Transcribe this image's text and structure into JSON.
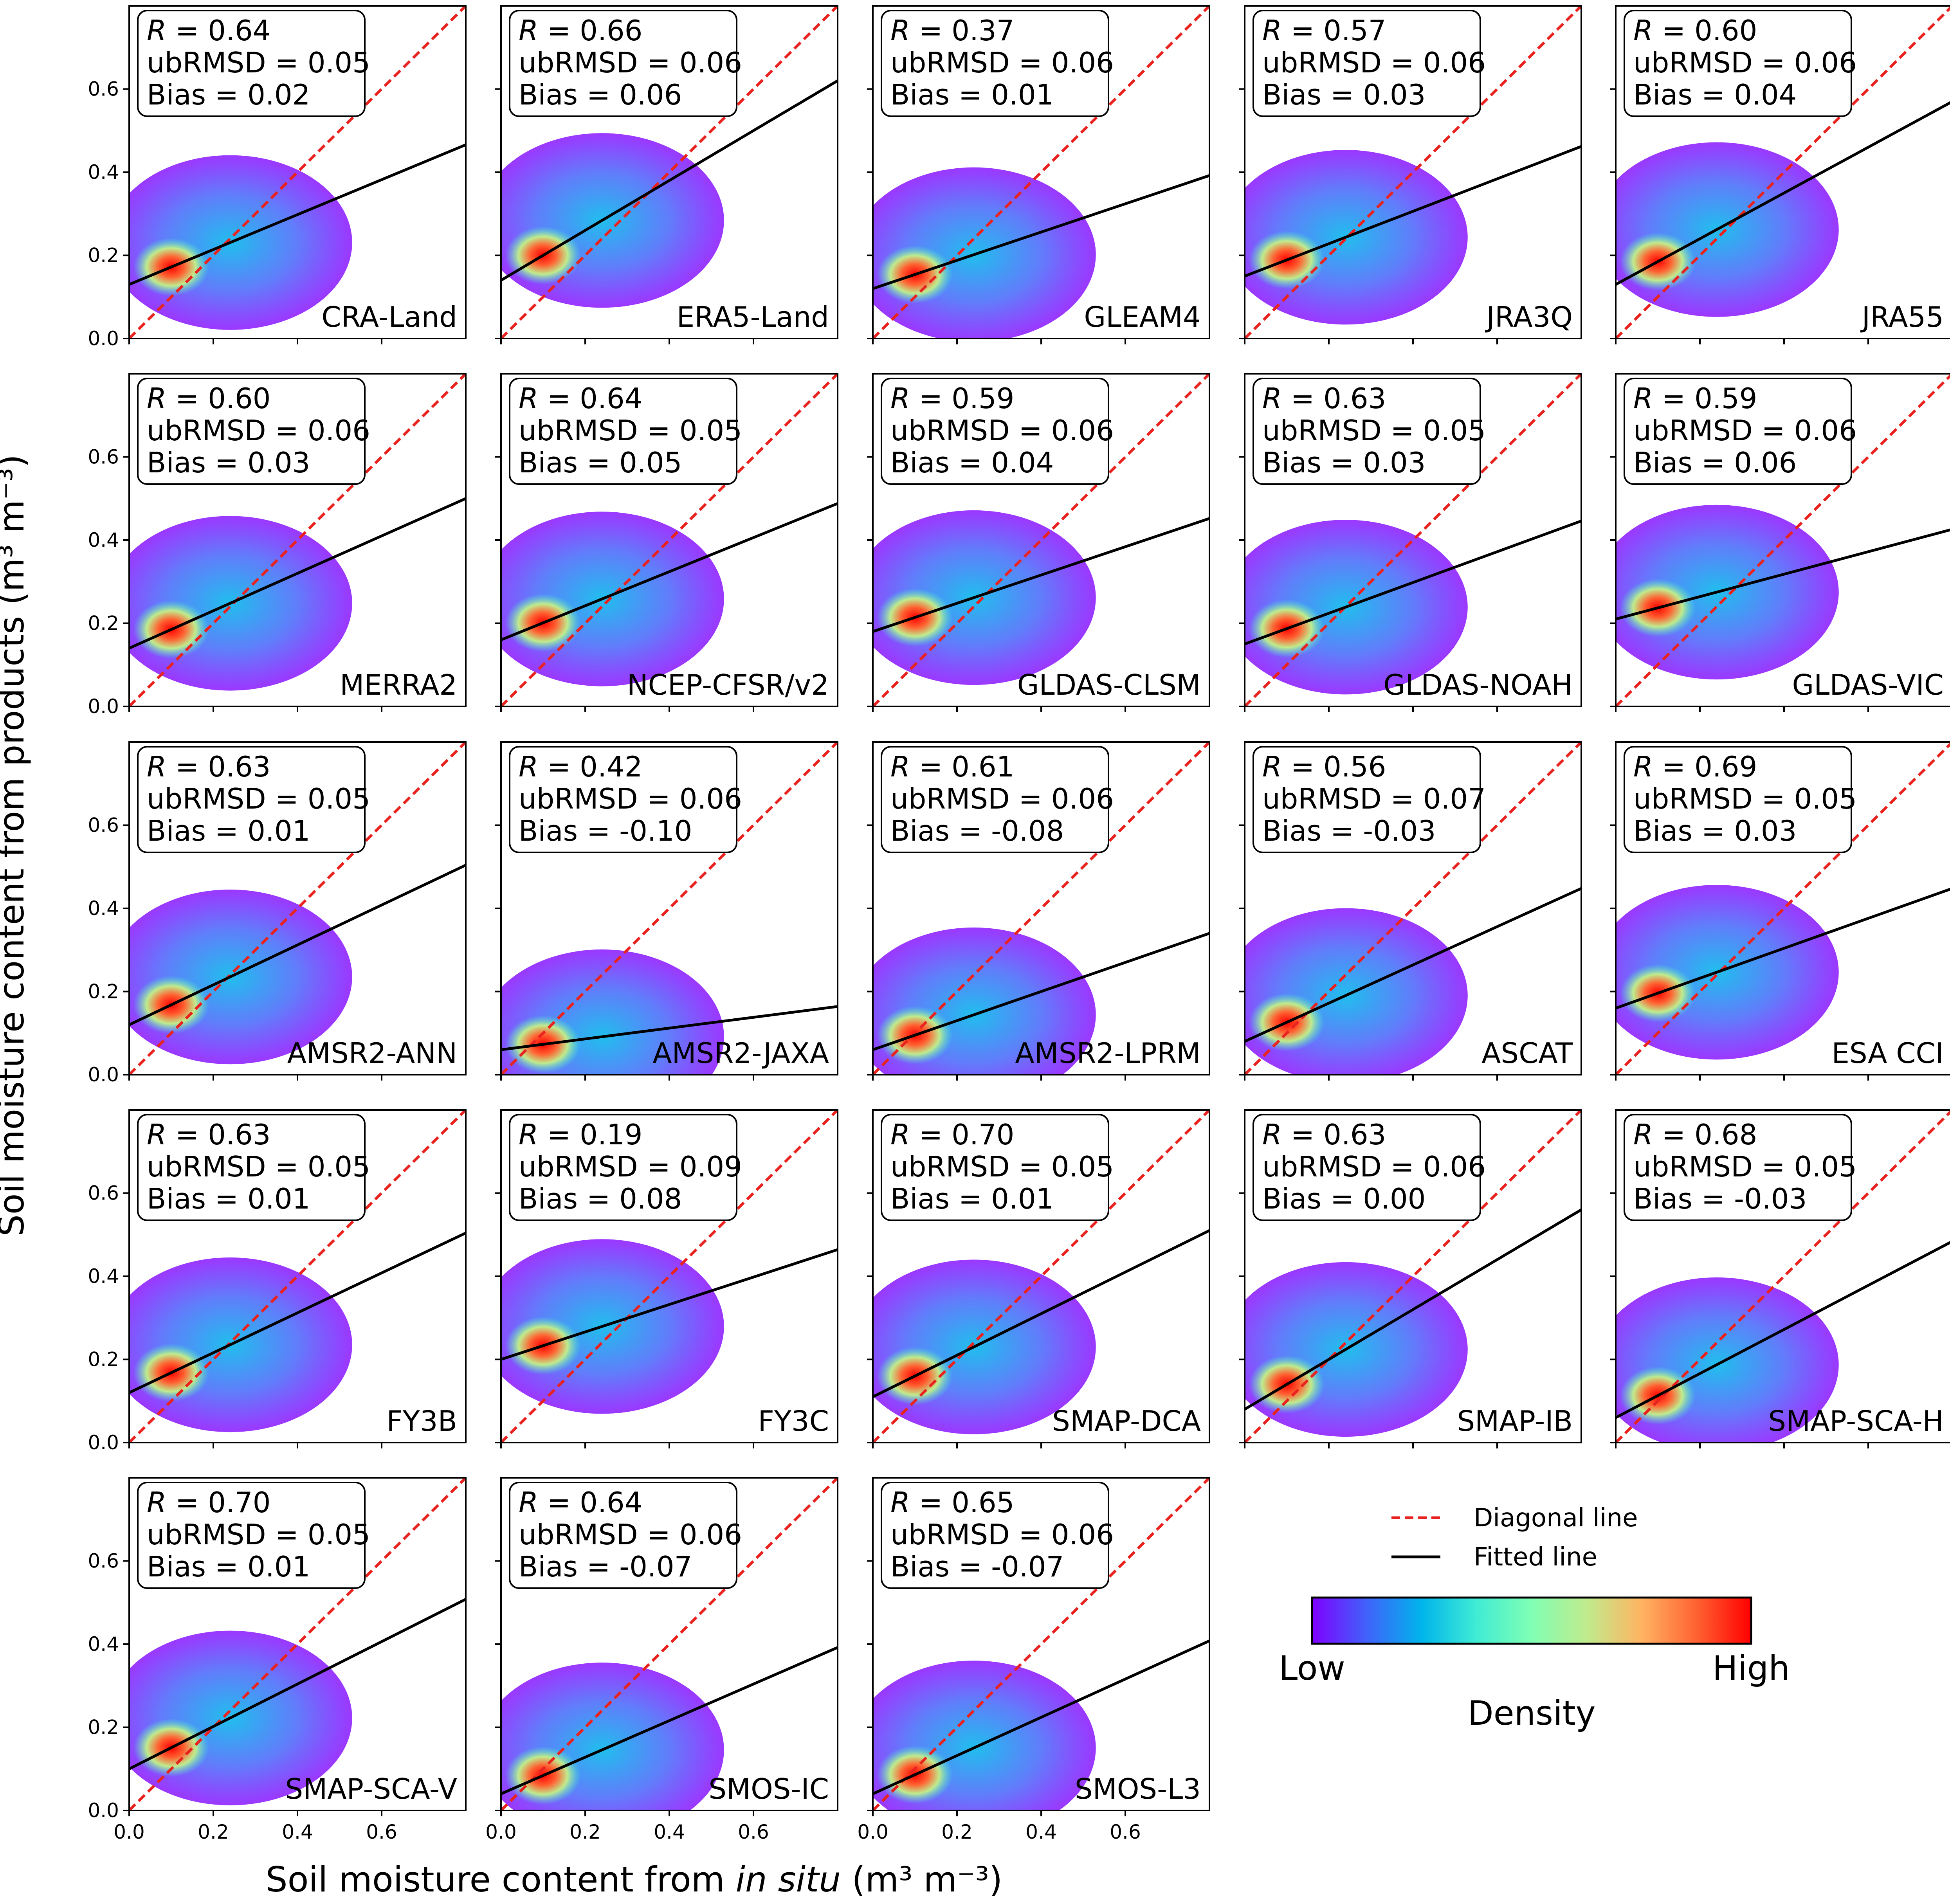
{
  "figure": {
    "xlabel_prefix": "Soil moisture content from ",
    "xlabel_italic": "in situ",
    "xlabel_unit": " (m³ m⁻³)",
    "ylabel": "Soil moisture content from products (m³ m⁻³)",
    "stat_labels": {
      "r": "R",
      "ubrmsd": "ubRMSD",
      "bias": "Bias"
    }
  },
  "legend": {
    "diagonal_label": "Diagonal line",
    "fitted_label": "Fitted line",
    "diagonal_color": "#e8231f",
    "fitted_color": "#000000"
  },
  "colorbar": {
    "low_label": "Low",
    "high_label": "High",
    "title": "Density",
    "colormap": "rainbow",
    "stops": [
      "#8000ff",
      "#4062fa",
      "#00b5eb",
      "#40ecd4",
      "#80ffb4",
      "#c0eb8d",
      "#ffb462",
      "#ff6232",
      "#ff0000"
    ]
  },
  "chart_data": {
    "type": "scatter",
    "xlim": [
      0.0,
      0.8
    ],
    "ylim": [
      0.0,
      0.8
    ],
    "xticks": [
      "0.0",
      "0.2",
      "0.4",
      "0.6"
    ],
    "yticks": [
      "0.0",
      "0.2",
      "0.4",
      "0.6"
    ],
    "xtick_values": [
      0.0,
      0.2,
      0.4,
      0.6
    ],
    "ytick_values": [
      0.0,
      0.2,
      0.4,
      0.6
    ],
    "grid": false,
    "legend_position": "lower-right",
    "panels": [
      {
        "name": "CRA-Land",
        "r": "0.64",
        "ubrmsd": "0.05",
        "bias": "0.02",
        "fit": {
          "intercept": 0.13,
          "slope": 0.42
        }
      },
      {
        "name": "ERA5-Land",
        "r": "0.66",
        "ubrmsd": "0.06",
        "bias": "0.06",
        "fit": {
          "intercept": 0.14,
          "slope": 0.6
        }
      },
      {
        "name": "GLEAM4",
        "r": "0.37",
        "ubrmsd": "0.06",
        "bias": "0.01",
        "fit": {
          "intercept": 0.12,
          "slope": 0.34
        }
      },
      {
        "name": "JRA3Q",
        "r": "0.57",
        "ubrmsd": "0.06",
        "bias": "0.03",
        "fit": {
          "intercept": 0.15,
          "slope": 0.39
        }
      },
      {
        "name": "JRA55",
        "r": "0.60",
        "ubrmsd": "0.06",
        "bias": "0.04",
        "fit": {
          "intercept": 0.13,
          "slope": 0.55
        }
      },
      {
        "name": "MERRA2",
        "r": "0.60",
        "ubrmsd": "0.06",
        "bias": "0.03",
        "fit": {
          "intercept": 0.14,
          "slope": 0.45
        }
      },
      {
        "name": "NCEP-CFSR/v2",
        "r": "0.64",
        "ubrmsd": "0.05",
        "bias": "0.05",
        "fit": {
          "intercept": 0.16,
          "slope": 0.41
        }
      },
      {
        "name": "GLDAS-CLSM",
        "r": "0.59",
        "ubrmsd": "0.06",
        "bias": "0.04",
        "fit": {
          "intercept": 0.18,
          "slope": 0.34
        }
      },
      {
        "name": "GLDAS-NOAH",
        "r": "0.63",
        "ubrmsd": "0.05",
        "bias": "0.03",
        "fit": {
          "intercept": 0.15,
          "slope": 0.37
        }
      },
      {
        "name": "GLDAS-VIC",
        "r": "0.59",
        "ubrmsd": "0.06",
        "bias": "0.06",
        "fit": {
          "intercept": 0.21,
          "slope": 0.27
        }
      },
      {
        "name": "AMSR2-ANN",
        "r": "0.63",
        "ubrmsd": "0.05",
        "bias": "0.01",
        "fit": {
          "intercept": 0.12,
          "slope": 0.48
        }
      },
      {
        "name": "AMSR2-JAXA",
        "r": "0.42",
        "ubrmsd": "0.06",
        "bias": "-0.10",
        "fit": {
          "intercept": 0.06,
          "slope": 0.13
        }
      },
      {
        "name": "AMSR2-LPRM",
        "r": "0.61",
        "ubrmsd": "0.06",
        "bias": "-0.08",
        "fit": {
          "intercept": 0.06,
          "slope": 0.35
        }
      },
      {
        "name": "ASCAT",
        "r": "0.56",
        "ubrmsd": "0.07",
        "bias": "-0.03",
        "fit": {
          "intercept": 0.08,
          "slope": 0.46
        }
      },
      {
        "name": "ESA CCI",
        "r": "0.69",
        "ubrmsd": "0.05",
        "bias": "0.03",
        "fit": {
          "intercept": 0.16,
          "slope": 0.36
        }
      },
      {
        "name": "FY3B",
        "r": "0.63",
        "ubrmsd": "0.05",
        "bias": "0.01",
        "fit": {
          "intercept": 0.12,
          "slope": 0.48
        }
      },
      {
        "name": "FY3C",
        "r": "0.19",
        "ubrmsd": "0.09",
        "bias": "0.08",
        "fit": {
          "intercept": 0.2,
          "slope": 0.33
        }
      },
      {
        "name": "SMAP-DCA",
        "r": "0.70",
        "ubrmsd": "0.05",
        "bias": "0.01",
        "fit": {
          "intercept": 0.11,
          "slope": 0.5
        }
      },
      {
        "name": "SMAP-IB",
        "r": "0.63",
        "ubrmsd": "0.06",
        "bias": "0.00",
        "fit": {
          "intercept": 0.08,
          "slope": 0.6
        }
      },
      {
        "name": "SMAP-SCA-H",
        "r": "0.68",
        "ubrmsd": "0.05",
        "bias": "-0.03",
        "fit": {
          "intercept": 0.06,
          "slope": 0.53
        }
      },
      {
        "name": "SMAP-SCA-V",
        "r": "0.70",
        "ubrmsd": "0.05",
        "bias": "0.01",
        "fit": {
          "intercept": 0.1,
          "slope": 0.51
        }
      },
      {
        "name": "SMOS-IC",
        "r": "0.64",
        "ubrmsd": "0.06",
        "bias": "-0.07",
        "fit": {
          "intercept": 0.04,
          "slope": 0.44
        }
      },
      {
        "name": "SMOS-L3",
        "r": "0.65",
        "ubrmsd": "0.06",
        "bias": "-0.07",
        "fit": {
          "intercept": 0.04,
          "slope": 0.46
        }
      }
    ]
  }
}
